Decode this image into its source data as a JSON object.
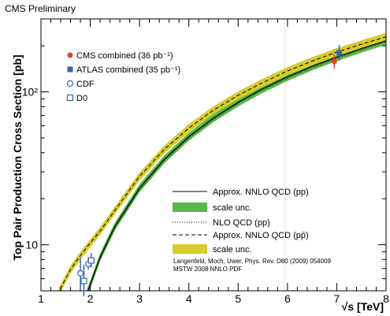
{
  "header": {
    "label": "CMS Preliminary"
  },
  "chart_data": {
    "type": "line",
    "title": "",
    "xlabel": "√s [TeV]",
    "ylabel": "Top Pair Production Cross Section [pb]",
    "xlim": [
      1,
      8
    ],
    "ylim": [
      5,
      300
    ],
    "y_scale": "log",
    "x_ticks": [
      "1",
      "2",
      "3",
      "4",
      "5",
      "6",
      "7",
      "8"
    ],
    "y_ticks": [
      {
        "value": 10,
        "label": "10"
      },
      {
        "value": 100,
        "label": "10²"
      }
    ],
    "series": [
      {
        "name": "Approx. NNLO QCD (pp)",
        "style": "solid",
        "color": "#000000",
        "band_name": "scale unc.",
        "band_color": "#5ab845",
        "band_rel_unc": 0.06,
        "x": [
          1.9,
          2.0,
          2.2,
          2.5,
          3.0,
          3.5,
          4.0,
          4.5,
          5.0,
          5.5,
          6.0,
          6.5,
          7.0,
          7.5,
          8.0
        ],
        "y": [
          4.5,
          5.5,
          8.3,
          13.2,
          23.5,
          36.2,
          51,
          67.5,
          85.5,
          105,
          125.5,
          147,
          169,
          192,
          216
        ]
      },
      {
        "name": "NLO QCD (pp)",
        "style": "dotted",
        "color": "#000000",
        "x": [
          1.9,
          2.0,
          2.2,
          2.5,
          3.0,
          3.5,
          4.0,
          4.5,
          5.0,
          5.5,
          6.0,
          6.5,
          7.0,
          7.5,
          8.0
        ],
        "y": [
          4.4,
          5.4,
          8.1,
          13.0,
          23.0,
          35.5,
          50,
          66,
          84,
          103,
          123,
          144,
          166,
          189,
          213
        ]
      },
      {
        "name": "Approx. NNLO QCD (pp̄)",
        "style": "dashed",
        "color": "#000000",
        "band_name": "scale unc.",
        "band_color": "#d6cc2c",
        "band_rel_unc": 0.06,
        "x": [
          1.3,
          1.4,
          1.6,
          1.8,
          1.96,
          2.2,
          2.5,
          3.0,
          3.5,
          4.0,
          4.5,
          5.0,
          5.5,
          6.0,
          6.5,
          7.0,
          7.5,
          8.0
        ],
        "y": [
          4.3,
          5.2,
          6.9,
          8.5,
          9.9,
          12.3,
          16.8,
          28,
          42,
          58,
          76,
          95,
          115,
          137,
          159,
          182,
          205,
          229
        ]
      }
    ],
    "measurements": [
      {
        "name": "CMS combined (36 pb⁻¹)",
        "marker": "filled-circle",
        "color": "#e8432e",
        "x": 6.95,
        "y": 158,
        "err_lo": 142,
        "err_hi": 176
      },
      {
        "name": "ATLAS combined (35 pb⁻¹)",
        "marker": "filled-square",
        "color": "#3a66b0",
        "x": 7.05,
        "y": 180,
        "err_lo": 160,
        "err_hi": 203
      },
      {
        "name": "CDF",
        "marker": "open-circle",
        "color": "#3a66b0",
        "points": [
          {
            "x": 1.8,
            "y": 6.5,
            "err_lo": 5.1,
            "err_hi": 8.2
          },
          {
            "x": 1.96,
            "y": 7.5,
            "err_lo": 6.9,
            "err_hi": 8.2
          }
        ]
      },
      {
        "name": "D0",
        "marker": "open-square",
        "color": "#3a66b0",
        "points": [
          {
            "x": 1.87,
            "y": 5.8,
            "err_lo": 4.6,
            "err_hi": 7.4
          },
          {
            "x": 2.02,
            "y": 7.9,
            "err_lo": 7.1,
            "err_hi": 8.8
          }
        ]
      }
    ],
    "reference_line_x": 5.95,
    "legend_top": "top-left",
    "legend_bottom": "bottom-right",
    "annotation": [
      "Langenfeld, Moch, Uwer, Phys. Rev. D80 (2009) 054009",
      "MSTW 2008 NNLO PDF"
    ]
  }
}
